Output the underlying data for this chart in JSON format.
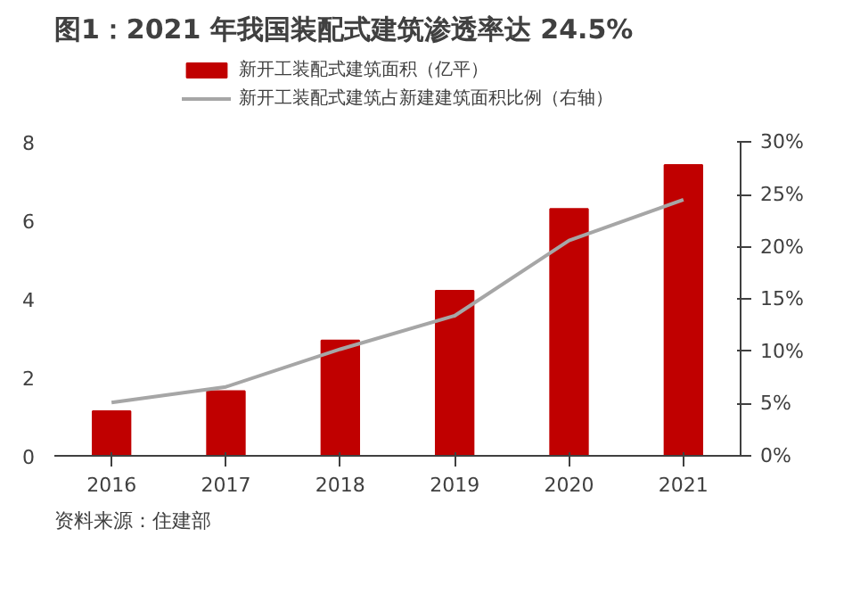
{
  "chart_data": {
    "type": "bar",
    "title": "图1：2021 年我国装配式建筑渗透率达 24.5%",
    "categories": [
      "2016",
      "2017",
      "2018",
      "2019",
      "2020",
      "2021"
    ],
    "series": [
      {
        "name": "新开工装配式建筑面积（亿平）",
        "color": "#c00000",
        "values": [
          1.14,
          1.65,
          2.94,
          4.21,
          6.3,
          7.42
        ]
      },
      {
        "name": "新开工装配式建筑占新建建筑面积比例（右轴）",
        "type": "line",
        "axis": "y2",
        "color": "#a6a6a6",
        "values": [
          5.1,
          6.6,
          10.2,
          13.4,
          20.6,
          24.5
        ]
      }
    ],
    "ylim": [
      0,
      8
    ],
    "yticks": [
      0,
      2,
      4,
      6,
      8
    ],
    "y2lim": [
      0,
      30
    ],
    "y2ticks": [
      {
        "value": 0,
        "label": "0%"
      },
      {
        "value": 5,
        "label": "5%"
      },
      {
        "value": 10,
        "label": "10%"
      },
      {
        "value": 15,
        "label": "15%"
      },
      {
        "value": 20,
        "label": "20%"
      },
      {
        "value": 25,
        "label": "25%"
      },
      {
        "value": 30,
        "label": "30%"
      }
    ],
    "grid": false,
    "legend": "top",
    "marker": "none",
    "line_style": "solid",
    "annotations": [
      "资料来源：住建部"
    ]
  }
}
